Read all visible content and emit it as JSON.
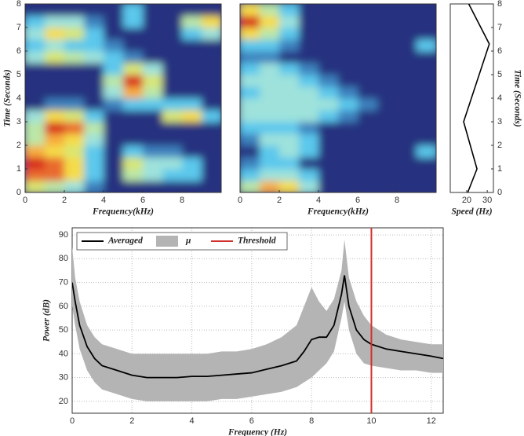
{
  "chart_data": [
    {
      "type": "heatmap",
      "xlabel": "Frequency(kHz)",
      "ylabel": "Time (Seconds)",
      "xlim": [
        0,
        10
      ],
      "ylim": [
        0,
        8
      ],
      "xticks": [
        0,
        2,
        4,
        6,
        8
      ],
      "yticks": [
        0,
        1,
        2,
        3,
        4,
        5,
        6,
        7,
        8
      ],
      "z": [
        [
          5,
          4,
          3,
          1,
          0,
          0,
          0,
          0,
          0,
          0
        ],
        [
          8,
          8,
          6,
          2,
          0,
          4,
          3,
          2,
          2,
          0
        ],
        [
          9,
          8,
          6,
          2,
          0,
          5,
          3,
          3,
          2,
          0
        ],
        [
          7,
          6,
          5,
          2,
          0,
          2,
          1,
          1,
          0,
          0
        ],
        [
          4,
          7,
          6,
          3,
          0,
          0,
          0,
          0,
          0,
          0
        ],
        [
          4,
          9,
          8,
          4,
          0,
          0,
          0,
          0,
          0,
          0
        ],
        [
          3,
          6,
          5,
          2,
          0,
          0,
          0,
          5,
          6,
          2
        ],
        [
          0,
          1,
          1,
          0,
          1,
          2,
          2,
          2,
          2,
          0
        ],
        [
          0,
          0,
          0,
          0,
          3,
          7,
          4,
          0,
          0,
          0
        ],
        [
          0,
          0,
          0,
          0,
          4,
          9,
          5,
          0,
          0,
          0
        ],
        [
          0,
          0,
          0,
          0,
          2,
          5,
          3,
          0,
          0,
          0
        ],
        [
          3,
          5,
          4,
          3,
          2,
          1,
          0,
          0,
          0,
          0
        ],
        [
          2,
          3,
          2,
          2,
          1,
          0,
          0,
          0,
          0,
          0
        ],
        [
          3,
          6,
          5,
          2,
          0,
          0,
          0,
          0,
          2,
          3
        ],
        [
          2,
          3,
          3,
          1,
          0,
          2,
          0,
          0,
          4,
          6
        ],
        [
          0,
          0,
          0,
          0,
          0,
          2,
          0,
          0,
          0,
          0
        ]
      ]
    },
    {
      "type": "heatmap",
      "xlabel": "Frequency(kHz)",
      "xlim": [
        0,
        10
      ],
      "ylim": [
        0,
        8
      ],
      "xticks": [
        0,
        2,
        4,
        6,
        8
      ],
      "z": [
        [
          4,
          7,
          6,
          3,
          0,
          0,
          0,
          0,
          0,
          0
        ],
        [
          2,
          3,
          3,
          2,
          0,
          0,
          0,
          0,
          0,
          0
        ],
        [
          1,
          2,
          2,
          0,
          0,
          0,
          0,
          0,
          0,
          0
        ],
        [
          0,
          2,
          3,
          2,
          0,
          0,
          0,
          0,
          0,
          2
        ],
        [
          1,
          3,
          3,
          2,
          0,
          0,
          0,
          0,
          0,
          0
        ],
        [
          2,
          2,
          2,
          1,
          0,
          0,
          0,
          0,
          0,
          0
        ],
        [
          3,
          3,
          3,
          3,
          2,
          1,
          0,
          0,
          0,
          0
        ],
        [
          3,
          3,
          3,
          3,
          3,
          2,
          1,
          0,
          0,
          0
        ],
        [
          2,
          3,
          3,
          3,
          2,
          1,
          0,
          0,
          0,
          0
        ],
        [
          3,
          3,
          3,
          2,
          1,
          0,
          0,
          0,
          0,
          0
        ],
        [
          2,
          3,
          2,
          1,
          0,
          0,
          0,
          0,
          0,
          0
        ],
        [
          1,
          1,
          0,
          0,
          0,
          0,
          0,
          0,
          0,
          0
        ],
        [
          2,
          2,
          1,
          0,
          0,
          0,
          0,
          0,
          0,
          2
        ],
        [
          6,
          4,
          2,
          0,
          0,
          0,
          0,
          0,
          0,
          0
        ],
        [
          9,
          6,
          3,
          0,
          0,
          0,
          0,
          0,
          0,
          0
        ],
        [
          6,
          4,
          2,
          0,
          0,
          0,
          0,
          0,
          0,
          0
        ]
      ]
    },
    {
      "type": "line",
      "xlabel": "Speed (Hz)",
      "ylabel": "Time (Seconds)",
      "xlim": [
        12,
        33
      ],
      "ylim": [
        0,
        8
      ],
      "xticks": [
        20,
        30
      ],
      "yticks": [
        0,
        1,
        2,
        3,
        4,
        5,
        6,
        7,
        8
      ],
      "y": [
        0,
        1,
        3,
        6.3,
        8
      ],
      "values": [
        20.5,
        25,
        18.5,
        31,
        21
      ],
      "color": "#000000"
    },
    {
      "type": "line",
      "xlabel": "Frequency (Hz)",
      "ylabel": "Power (dB)",
      "xlim": [
        0,
        12.4
      ],
      "ylim": [
        15,
        93
      ],
      "xticks": [
        0,
        2,
        4,
        6,
        8,
        10,
        12
      ],
      "yticks": [
        20,
        30,
        40,
        50,
        60,
        70,
        80,
        90
      ],
      "grid": true,
      "legend": "upper left",
      "x": [
        0,
        0.1,
        0.25,
        0.5,
        0.75,
        1,
        1.5,
        2,
        2.5,
        3,
        3.5,
        4,
        4.5,
        5,
        5.5,
        6,
        6.5,
        7,
        7.5,
        7.75,
        8,
        8.25,
        8.5,
        8.75,
        9,
        9.1,
        9.25,
        9.5,
        9.75,
        10,
        10.5,
        11,
        11.5,
        12,
        12.4
      ],
      "series": [
        {
          "name": "Averaged",
          "color": "#000000",
          "values": [
            70,
            62,
            52,
            43,
            38,
            35,
            33,
            31,
            30,
            30,
            30,
            30.5,
            30.5,
            31,
            31.5,
            32,
            33.5,
            35,
            37,
            41,
            46,
            47,
            47,
            52,
            65,
            73,
            60,
            50,
            46,
            44,
            42,
            41,
            40,
            39,
            38
          ]
        }
      ],
      "band": {
        "name": "μ",
        "color": "#b4b4b4",
        "upper": [
          85,
          72,
          62,
          52,
          47,
          44,
          42,
          40,
          40,
          40,
          40,
          40,
          40,
          41,
          41,
          42,
          44,
          47,
          52,
          60,
          68,
          62,
          58,
          63,
          75,
          88,
          72,
          62,
          56,
          52,
          48,
          46,
          45,
          44,
          44
        ],
        "lower": [
          60,
          52,
          42,
          33,
          28,
          25,
          23,
          21,
          20,
          20,
          20,
          20,
          20,
          21,
          21,
          22,
          23,
          24,
          26,
          28,
          30,
          33,
          36,
          41,
          55,
          62,
          50,
          40,
          36,
          35,
          34,
          33,
          33,
          32,
          32
        ]
      },
      "threshold": {
        "name": "Threshold",
        "color": "#d0312d",
        "x": 10
      }
    }
  ]
}
